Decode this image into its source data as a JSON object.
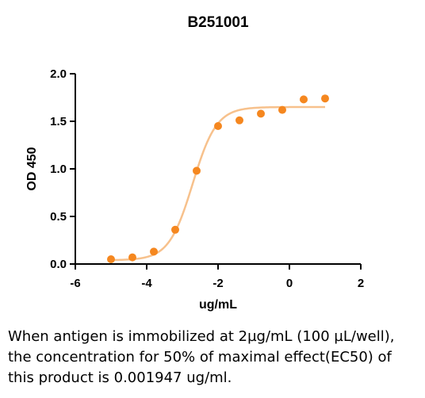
{
  "chart_data": {
    "type": "scatter",
    "title": "B251001",
    "xlabel": "ug/mL",
    "ylabel": "OD 450",
    "xlim": [
      -6,
      2
    ],
    "ylim": [
      0.0,
      2.0
    ],
    "xticks": [
      "-6",
      "-4",
      "-2",
      "0",
      "2"
    ],
    "yticks": [
      "0.0",
      "0.5",
      "1.0",
      "1.5",
      "2.0"
    ],
    "grid": false,
    "series": [
      {
        "x": [
          -5.0,
          -4.4,
          -3.8,
          -3.2,
          -2.6,
          -2.0,
          -1.4,
          -0.8,
          -0.2,
          0.4,
          1.0
        ],
        "y": [
          0.05,
          0.07,
          0.13,
          0.36,
          0.98,
          1.45,
          1.51,
          1.58,
          1.62,
          1.73,
          1.74
        ],
        "color": "#F5871F"
      }
    ],
    "fit": {
      "curve": "four-parameter logistic",
      "bottom": 0.04,
      "top": 1.65,
      "log_ec50": -2.71,
      "hill_slope": 1.3,
      "color": "#F7C18C"
    }
  },
  "caption": "When antigen is immobilized at 2µg/mL (100 µL/well), the concentration for 50% of maximal effect(EC50) of this product is 0.001947 ug/ml."
}
